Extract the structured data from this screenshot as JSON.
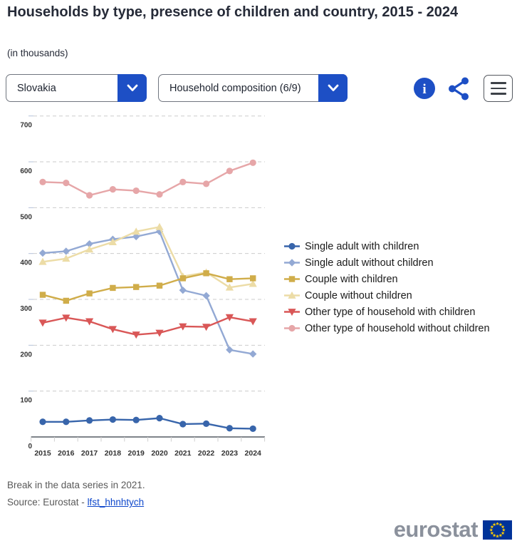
{
  "header": {
    "title": "Households by type, presence of children and country, 2015 - 2024",
    "subtitle": "(in thousands)"
  },
  "controls": {
    "country_select": {
      "value": "Slovakia"
    },
    "composition_select": {
      "value": "Household composition (6/9)"
    },
    "icons": {
      "info": "info-icon",
      "share": "share-icon",
      "menu": "hamburger-menu-icon",
      "chevron": "chevron-down-icon"
    }
  },
  "colors": {
    "accent_blue": "#1d4fc5",
    "link_blue": "#0e47cb",
    "title_text": "#262b38",
    "axis_label": "#333333",
    "gridline": "#cbcbcb",
    "footer_text": "#595959",
    "logo_gray": "#8b919c",
    "flag_blue": "#003399",
    "flag_star_yellow": "#ffcc00"
  },
  "chart_data": {
    "type": "line",
    "title": "Households by type, presence of children and country, 2015 - 2024",
    "unit": "in thousands",
    "x": [
      "2015",
      "2016",
      "2017",
      "2018",
      "2019",
      "2020",
      "2021",
      "2022",
      "2023",
      "2024"
    ],
    "ylim": [
      0,
      750
    ],
    "yticks": [
      0,
      100,
      200,
      300,
      400,
      500,
      600,
      700
    ],
    "grid": "horizontal-dashed",
    "legend_position": "right",
    "series": [
      {
        "name": "Single adult with children",
        "color": "#3865ab",
        "marker": "circle",
        "values": [
          33,
          33,
          36,
          38,
          37,
          41,
          28,
          29,
          19,
          18
        ]
      },
      {
        "name": "Single adult without children",
        "color": "#93a9d4",
        "marker": "diamond",
        "values": [
          401,
          405,
          421,
          431,
          437,
          448,
          320,
          308,
          190,
          181
        ]
      },
      {
        "name": "Couple with children",
        "color": "#d0ad4a",
        "marker": "square",
        "values": [
          310,
          297,
          313,
          325,
          327,
          330,
          346,
          357,
          344,
          346
        ]
      },
      {
        "name": "Couple without children",
        "color": "#ecdca6",
        "marker": "triangle-up",
        "values": [
          382,
          389,
          409,
          425,
          448,
          458,
          350,
          359,
          326,
          334
        ]
      },
      {
        "name": "Other type of household with children",
        "color": "#d95757",
        "marker": "triangle-down",
        "values": [
          249,
          260,
          252,
          235,
          223,
          227,
          241,
          240,
          261,
          252
        ]
      },
      {
        "name": "Other type of household without children",
        "color": "#e6a6a8",
        "marker": "circle",
        "values": [
          556,
          554,
          527,
          540,
          537,
          529,
          556,
          552,
          580,
          598
        ]
      }
    ]
  },
  "footer": {
    "note": "Break in the data series in 2021.",
    "source_prefix": "Source: Eurostat - ",
    "source_link": "lfst_hhnhtych"
  },
  "branding": {
    "logo_text": "eurostat"
  }
}
